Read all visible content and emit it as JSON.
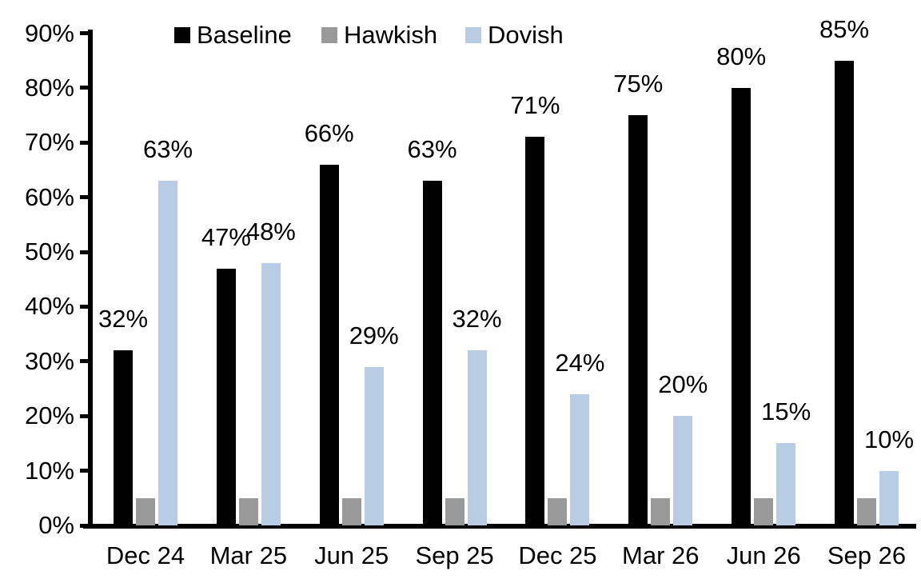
{
  "chart_data": {
    "type": "bar",
    "title": "",
    "xlabel": "",
    "ylabel": "",
    "categories": [
      "Dec 24",
      "Mar 25",
      "Jun 25",
      "Sep 25",
      "Dec 25",
      "Mar 26",
      "Jun 26",
      "Sep 26"
    ],
    "series": [
      {
        "name": "Baseline",
        "color": "#000000",
        "values": [
          32,
          47,
          66,
          63,
          71,
          75,
          80,
          85
        ],
        "value_labels": [
          "32%",
          "47%",
          "66%",
          "63%",
          "71%",
          "75%",
          "80%",
          "85%"
        ]
      },
      {
        "name": "Hawkish",
        "color": "#999999",
        "values": [
          5,
          5,
          5,
          5,
          5,
          5,
          5,
          5
        ],
        "value_labels": [
          null,
          null,
          null,
          null,
          null,
          null,
          null,
          null
        ]
      },
      {
        "name": "Dovish",
        "color": "#B8CCE4",
        "values": [
          63,
          48,
          29,
          32,
          24,
          20,
          15,
          10
        ],
        "value_labels": [
          "63%",
          "48%",
          "29%",
          "32%",
          "24%",
          "20%",
          "15%",
          "10%"
        ]
      }
    ],
    "ylim": [
      0,
      90
    ],
    "yticks": [
      {
        "label": "0%",
        "value": 0
      },
      {
        "label": "10%",
        "value": 10
      },
      {
        "label": "20%",
        "value": 20
      },
      {
        "label": "30%",
        "value": 30
      },
      {
        "label": "40%",
        "value": 40
      },
      {
        "label": "50%",
        "value": 50
      },
      {
        "label": "60%",
        "value": 60
      },
      {
        "label": "70%",
        "value": 70
      },
      {
        "label": "80%",
        "value": 80
      },
      {
        "label": "90%",
        "value": 90
      }
    ],
    "grid": false,
    "legend_position": "top"
  }
}
